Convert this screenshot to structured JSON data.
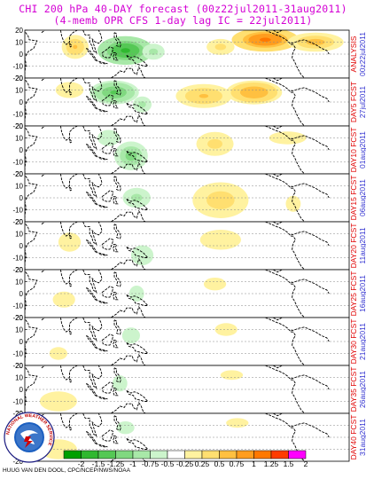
{
  "title_line1": "CHI 200 hPa 40-DAY forecast (00z22jul2011-31aug2011)",
  "title_line2": "(4-memb OPR CFS 1-day lag IC = 22jul2011)",
  "credit": "HUUG VAN DEN DOOL, CPC/NCEP/NWS/NOAA",
  "logo_text": "NATIONAL WEATHER SERVICE",
  "chart_data": {
    "type": "heatmap",
    "ytick_labels": [
      "20",
      "10",
      "0",
      "-10",
      "-20"
    ],
    "panels": [
      {
        "label": "ANALYSIS",
        "date": "00z22jul2011"
      },
      {
        "label": "DAY5 FCST",
        "date": "27jul2011"
      },
      {
        "label": "DAY10 FCST",
        "date": "01aug2011"
      },
      {
        "label": "DAY15 FCST",
        "date": "06aug2011"
      },
      {
        "label": "DAY20 FCST",
        "date": "11aug2011"
      },
      {
        "label": "DAY25 FCST",
        "date": "16aug2011"
      },
      {
        "label": "DAY30 FCST",
        "date": "21aug2011"
      },
      {
        "label": "DAY35 FCST",
        "date": "26aug2011"
      },
      {
        "label": "DAY40 FCST",
        "date": "31aug2011"
      }
    ],
    "colorbar": {
      "levels": [
        "-2",
        "-1.5",
        "-1.25",
        "-1",
        "-0.75",
        "-0.5",
        "-0.25",
        "0.25",
        "0.5",
        "0.75",
        "1",
        "1.25",
        "1.5",
        "2"
      ],
      "colors": [
        "#00a000",
        "#30b830",
        "#55c855",
        "#80d880",
        "#a8e8a8",
        "#ccf4cc",
        "#ffffff",
        "#fff2a0",
        "#ffdf70",
        "#ffc040",
        "#ff9d1e",
        "#ff7800",
        "#ff3c00",
        "#ff00ff"
      ]
    },
    "blobs": [
      [
        {
          "lon": 85,
          "lat": 6,
          "rlon": 12,
          "rlat": 10,
          "v": 0.8
        },
        {
          "lon": 130,
          "lat": 3,
          "rlon": 25,
          "rlat": 12,
          "v": -1.4
        },
        {
          "lon": 155,
          "lat": 2,
          "rlon": 12,
          "rlat": 8,
          "v": -0.6
        },
        {
          "lon": 215,
          "lat": 6,
          "rlon": 15,
          "rlat": 8,
          "v": 0.6
        },
        {
          "lon": 255,
          "lat": 12,
          "rlon": 30,
          "rlat": 10,
          "v": 1.4
        },
        {
          "lon": 300,
          "lat": 10,
          "rlon": 25,
          "rlat": 8,
          "v": 0.9
        }
      ],
      [
        {
          "lon": 80,
          "lat": 10,
          "rlon": 15,
          "rlat": 8,
          "v": 0.5
        },
        {
          "lon": 120,
          "lat": 8,
          "rlon": 22,
          "rlat": 10,
          "v": -1.1
        },
        {
          "lon": 145,
          "lat": -2,
          "rlon": 10,
          "rlat": 8,
          "v": -0.6
        },
        {
          "lon": 200,
          "lat": 5,
          "rlon": 25,
          "rlat": 10,
          "v": 0.8
        },
        {
          "lon": 245,
          "lat": 8,
          "rlon": 25,
          "rlat": 10,
          "v": 1.0
        }
      ],
      [
        {
          "lon": 135,
          "lat": -5,
          "rlon": 15,
          "rlat": 12,
          "v": -0.9
        },
        {
          "lon": 115,
          "lat": 10,
          "rlon": 12,
          "rlat": 8,
          "v": -0.5
        },
        {
          "lon": 210,
          "lat": 5,
          "rlon": 20,
          "rlat": 12,
          "v": 0.6
        },
        {
          "lon": 275,
          "lat": 10,
          "rlon": 25,
          "rlat": 8,
          "v": 0.4
        }
      ],
      [
        {
          "lon": 140,
          "lat": 0,
          "rlon": 15,
          "rlat": 10,
          "v": -0.6
        },
        {
          "lon": 215,
          "lat": -2,
          "rlon": 25,
          "rlat": 15,
          "v": 0.7
        },
        {
          "lon": 280,
          "lat": -5,
          "rlon": 10,
          "rlat": 10,
          "v": 0.4
        }
      ],
      [
        {
          "lon": 80,
          "lat": 3,
          "rlon": 15,
          "rlat": 12,
          "v": 0.4
        },
        {
          "lon": 145,
          "lat": -8,
          "rlon": 12,
          "rlat": 10,
          "v": -0.5
        },
        {
          "lon": 215,
          "lat": 5,
          "rlon": 22,
          "rlat": 10,
          "v": 0.5
        }
      ],
      [
        {
          "lon": 75,
          "lat": -5,
          "rlon": 15,
          "rlat": 10,
          "v": 0.4
        },
        {
          "lon": 140,
          "lat": 0,
          "rlon": 10,
          "rlat": 10,
          "v": -0.4
        },
        {
          "lon": 210,
          "lat": 8,
          "rlon": 15,
          "rlat": 8,
          "v": 0.4
        }
      ],
      [
        {
          "lon": 70,
          "lat": -10,
          "rlon": 12,
          "rlat": 8,
          "v": 0.4
        },
        {
          "lon": 135,
          "lat": 5,
          "rlon": 12,
          "rlat": 10,
          "v": -0.4
        },
        {
          "lon": 220,
          "lat": 10,
          "rlon": 15,
          "rlat": 8,
          "v": 0.4
        }
      ],
      [
        {
          "lon": 70,
          "lat": -10,
          "rlon": 20,
          "rlat": 10,
          "v": 0.5
        },
        {
          "lon": 125,
          "lat": 5,
          "rlon": 10,
          "rlat": 10,
          "v": -0.4
        },
        {
          "lon": 225,
          "lat": 12,
          "rlon": 15,
          "rlat": 6,
          "v": 0.4
        }
      ],
      [
        {
          "lon": 70,
          "lat": -10,
          "rlon": 20,
          "rlat": 10,
          "v": 0.5
        },
        {
          "lon": 130,
          "lat": 8,
          "rlon": 12,
          "rlat": 8,
          "v": -0.4
        },
        {
          "lon": 230,
          "lat": 12,
          "rlon": 15,
          "rlat": 6,
          "v": 0.4
        }
      ]
    ]
  }
}
